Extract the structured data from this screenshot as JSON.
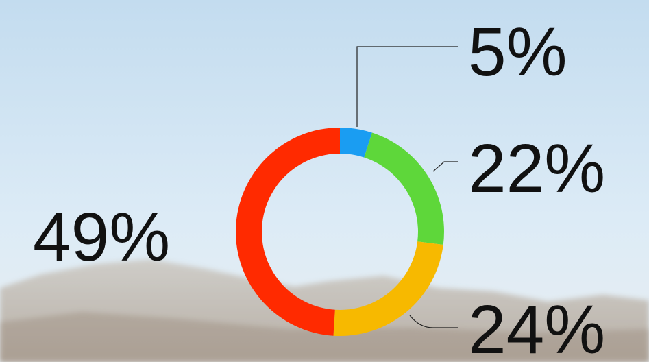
{
  "chart_data": {
    "type": "pie",
    "donut": true,
    "values": [
      5,
      22,
      24,
      49
    ],
    "value_labels": [
      "5%",
      "22%",
      "24%",
      "49%"
    ],
    "colors": [
      "#1a9df2",
      "#5ed73a",
      "#f7b900",
      "#ff2a00"
    ]
  }
}
